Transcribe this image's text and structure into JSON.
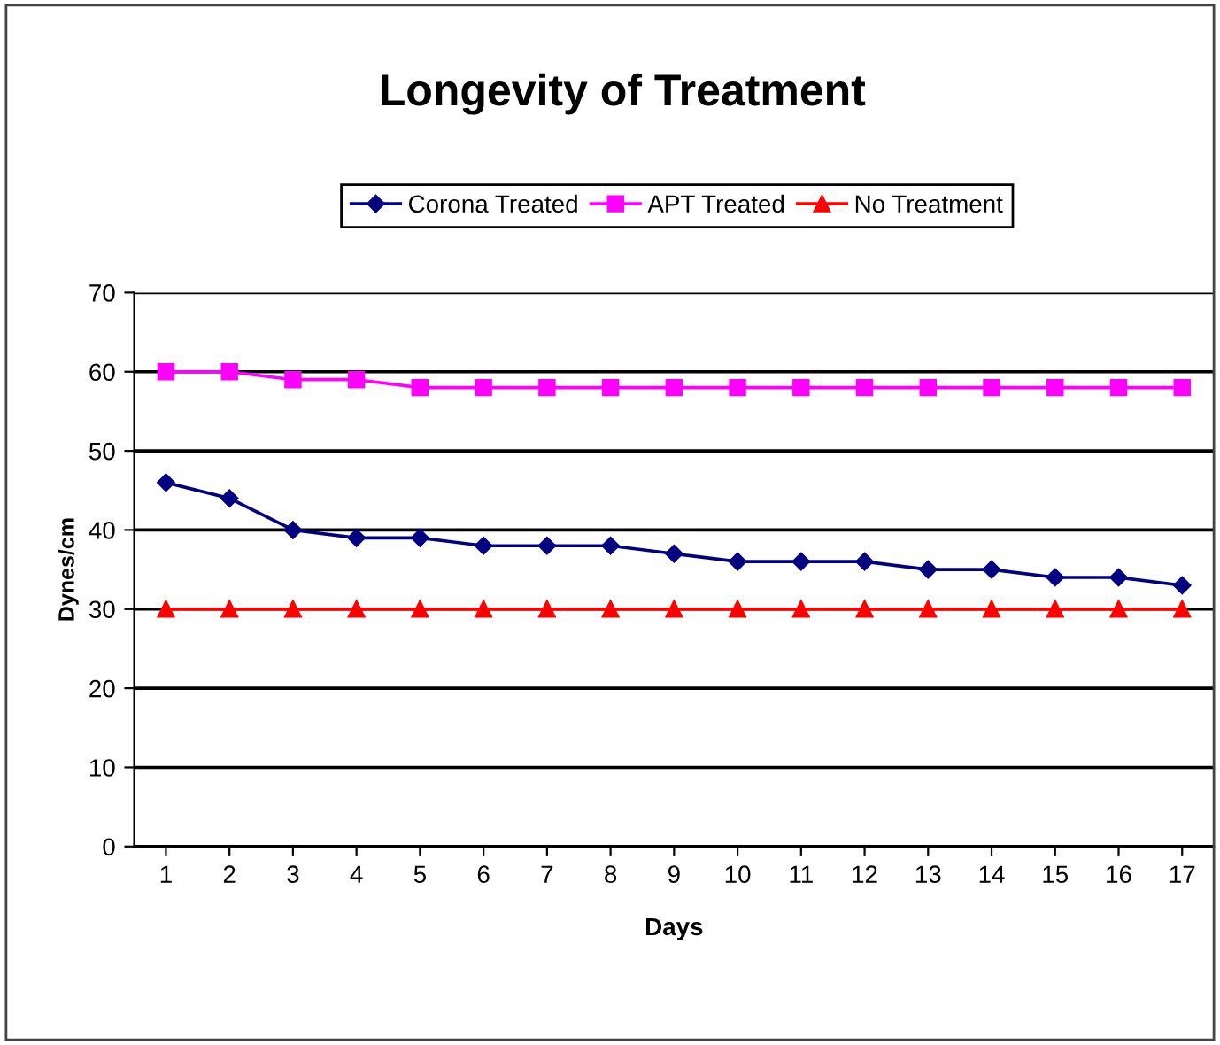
{
  "chart_data": {
    "type": "line",
    "title": "Longevity of Treatment",
    "xlabel": "Days",
    "ylabel": "Dynes/cm",
    "categories": [
      "1",
      "2",
      "3",
      "4",
      "5",
      "6",
      "7",
      "8",
      "9",
      "10",
      "11",
      "12",
      "13",
      "14",
      "15",
      "16",
      "17"
    ],
    "series": [
      {
        "name": "Corona Treated",
        "color": "#000080",
        "marker": "diamond",
        "values": [
          46,
          44,
          40,
          39,
          39,
          38,
          38,
          38,
          37,
          36,
          36,
          36,
          35,
          35,
          34,
          34,
          33
        ]
      },
      {
        "name": "APT Treated",
        "color": "#ff00ff",
        "marker": "square",
        "values": [
          60,
          60,
          59,
          59,
          58,
          58,
          58,
          58,
          58,
          58,
          58,
          58,
          58,
          58,
          58,
          58,
          58
        ]
      },
      {
        "name": "No Treatment",
        "color": "#ff0000",
        "marker": "triangle",
        "values": [
          30,
          30,
          30,
          30,
          30,
          30,
          30,
          30,
          30,
          30,
          30,
          30,
          30,
          30,
          30,
          30,
          30
        ]
      }
    ],
    "ylim": [
      0,
      70
    ],
    "yticks": [
      0,
      10,
      20,
      30,
      40,
      50,
      60,
      70
    ],
    "grid": "y",
    "legend": "top",
    "line_style": "solid"
  }
}
